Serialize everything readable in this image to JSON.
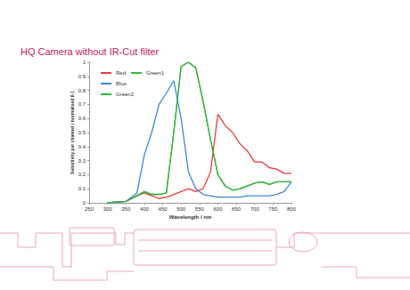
{
  "chart_data": {
    "type": "line",
    "title": "HQ Camera without IR-Cut filter",
    "xlabel": "Wavelength / nm",
    "ylabel": "Sensitivity per channel / normalised 0-1",
    "x": [
      300,
      350,
      380,
      400,
      420,
      440,
      460,
      480,
      500,
      520,
      540,
      560,
      580,
      600,
      620,
      640,
      660,
      680,
      700,
      720,
      740,
      760,
      780,
      800
    ],
    "series": [
      {
        "name": "Red",
        "color": "#ea3b3b",
        "values": [
          0,
          0.01,
          0.05,
          0.07,
          0.05,
          0.03,
          0.04,
          0.06,
          0.08,
          0.1,
          0.08,
          0.1,
          0.22,
          0.63,
          0.55,
          0.5,
          0.42,
          0.37,
          0.29,
          0.29,
          0.25,
          0.24,
          0.21,
          0.21
        ]
      },
      {
        "name": "Green1",
        "color": "#35b53f",
        "values": [
          0,
          0.01,
          0.05,
          0.08,
          0.06,
          0.06,
          0.07,
          0.5,
          0.97,
          1.0,
          0.96,
          0.72,
          0.45,
          0.2,
          0.12,
          0.09,
          0.1,
          0.12,
          0.14,
          0.15,
          0.13,
          0.15,
          0.15,
          0.15
        ]
      },
      {
        "name": "Blue",
        "color": "#3b87d6",
        "values": [
          0,
          0.01,
          0.07,
          0.34,
          0.5,
          0.7,
          0.78,
          0.87,
          0.6,
          0.22,
          0.1,
          0.06,
          0.05,
          0.04,
          0.04,
          0.04,
          0.04,
          0.05,
          0.05,
          0.05,
          0.05,
          0.06,
          0.08,
          0.15
        ]
      },
      {
        "name": "Green2",
        "color": "#35b53f",
        "values": [
          0,
          0.01,
          0.05,
          0.08,
          0.06,
          0.06,
          0.07,
          0.5,
          0.97,
          1.0,
          0.96,
          0.72,
          0.45,
          0.2,
          0.12,
          0.09,
          0.1,
          0.12,
          0.14,
          0.15,
          0.13,
          0.15,
          0.15,
          0.15
        ]
      }
    ],
    "xlim": [
      250,
      800
    ],
    "xticks": [
      250,
      300,
      350,
      400,
      450,
      500,
      550,
      600,
      650,
      700,
      750,
      800
    ],
    "ylim": [
      0,
      1
    ],
    "yticks": [
      0,
      0.1,
      0.2,
      0.3,
      0.4,
      0.5,
      0.6,
      0.7,
      0.8,
      0.9,
      1
    ],
    "grid": false,
    "legend": "upper left",
    "marker": "none"
  }
}
